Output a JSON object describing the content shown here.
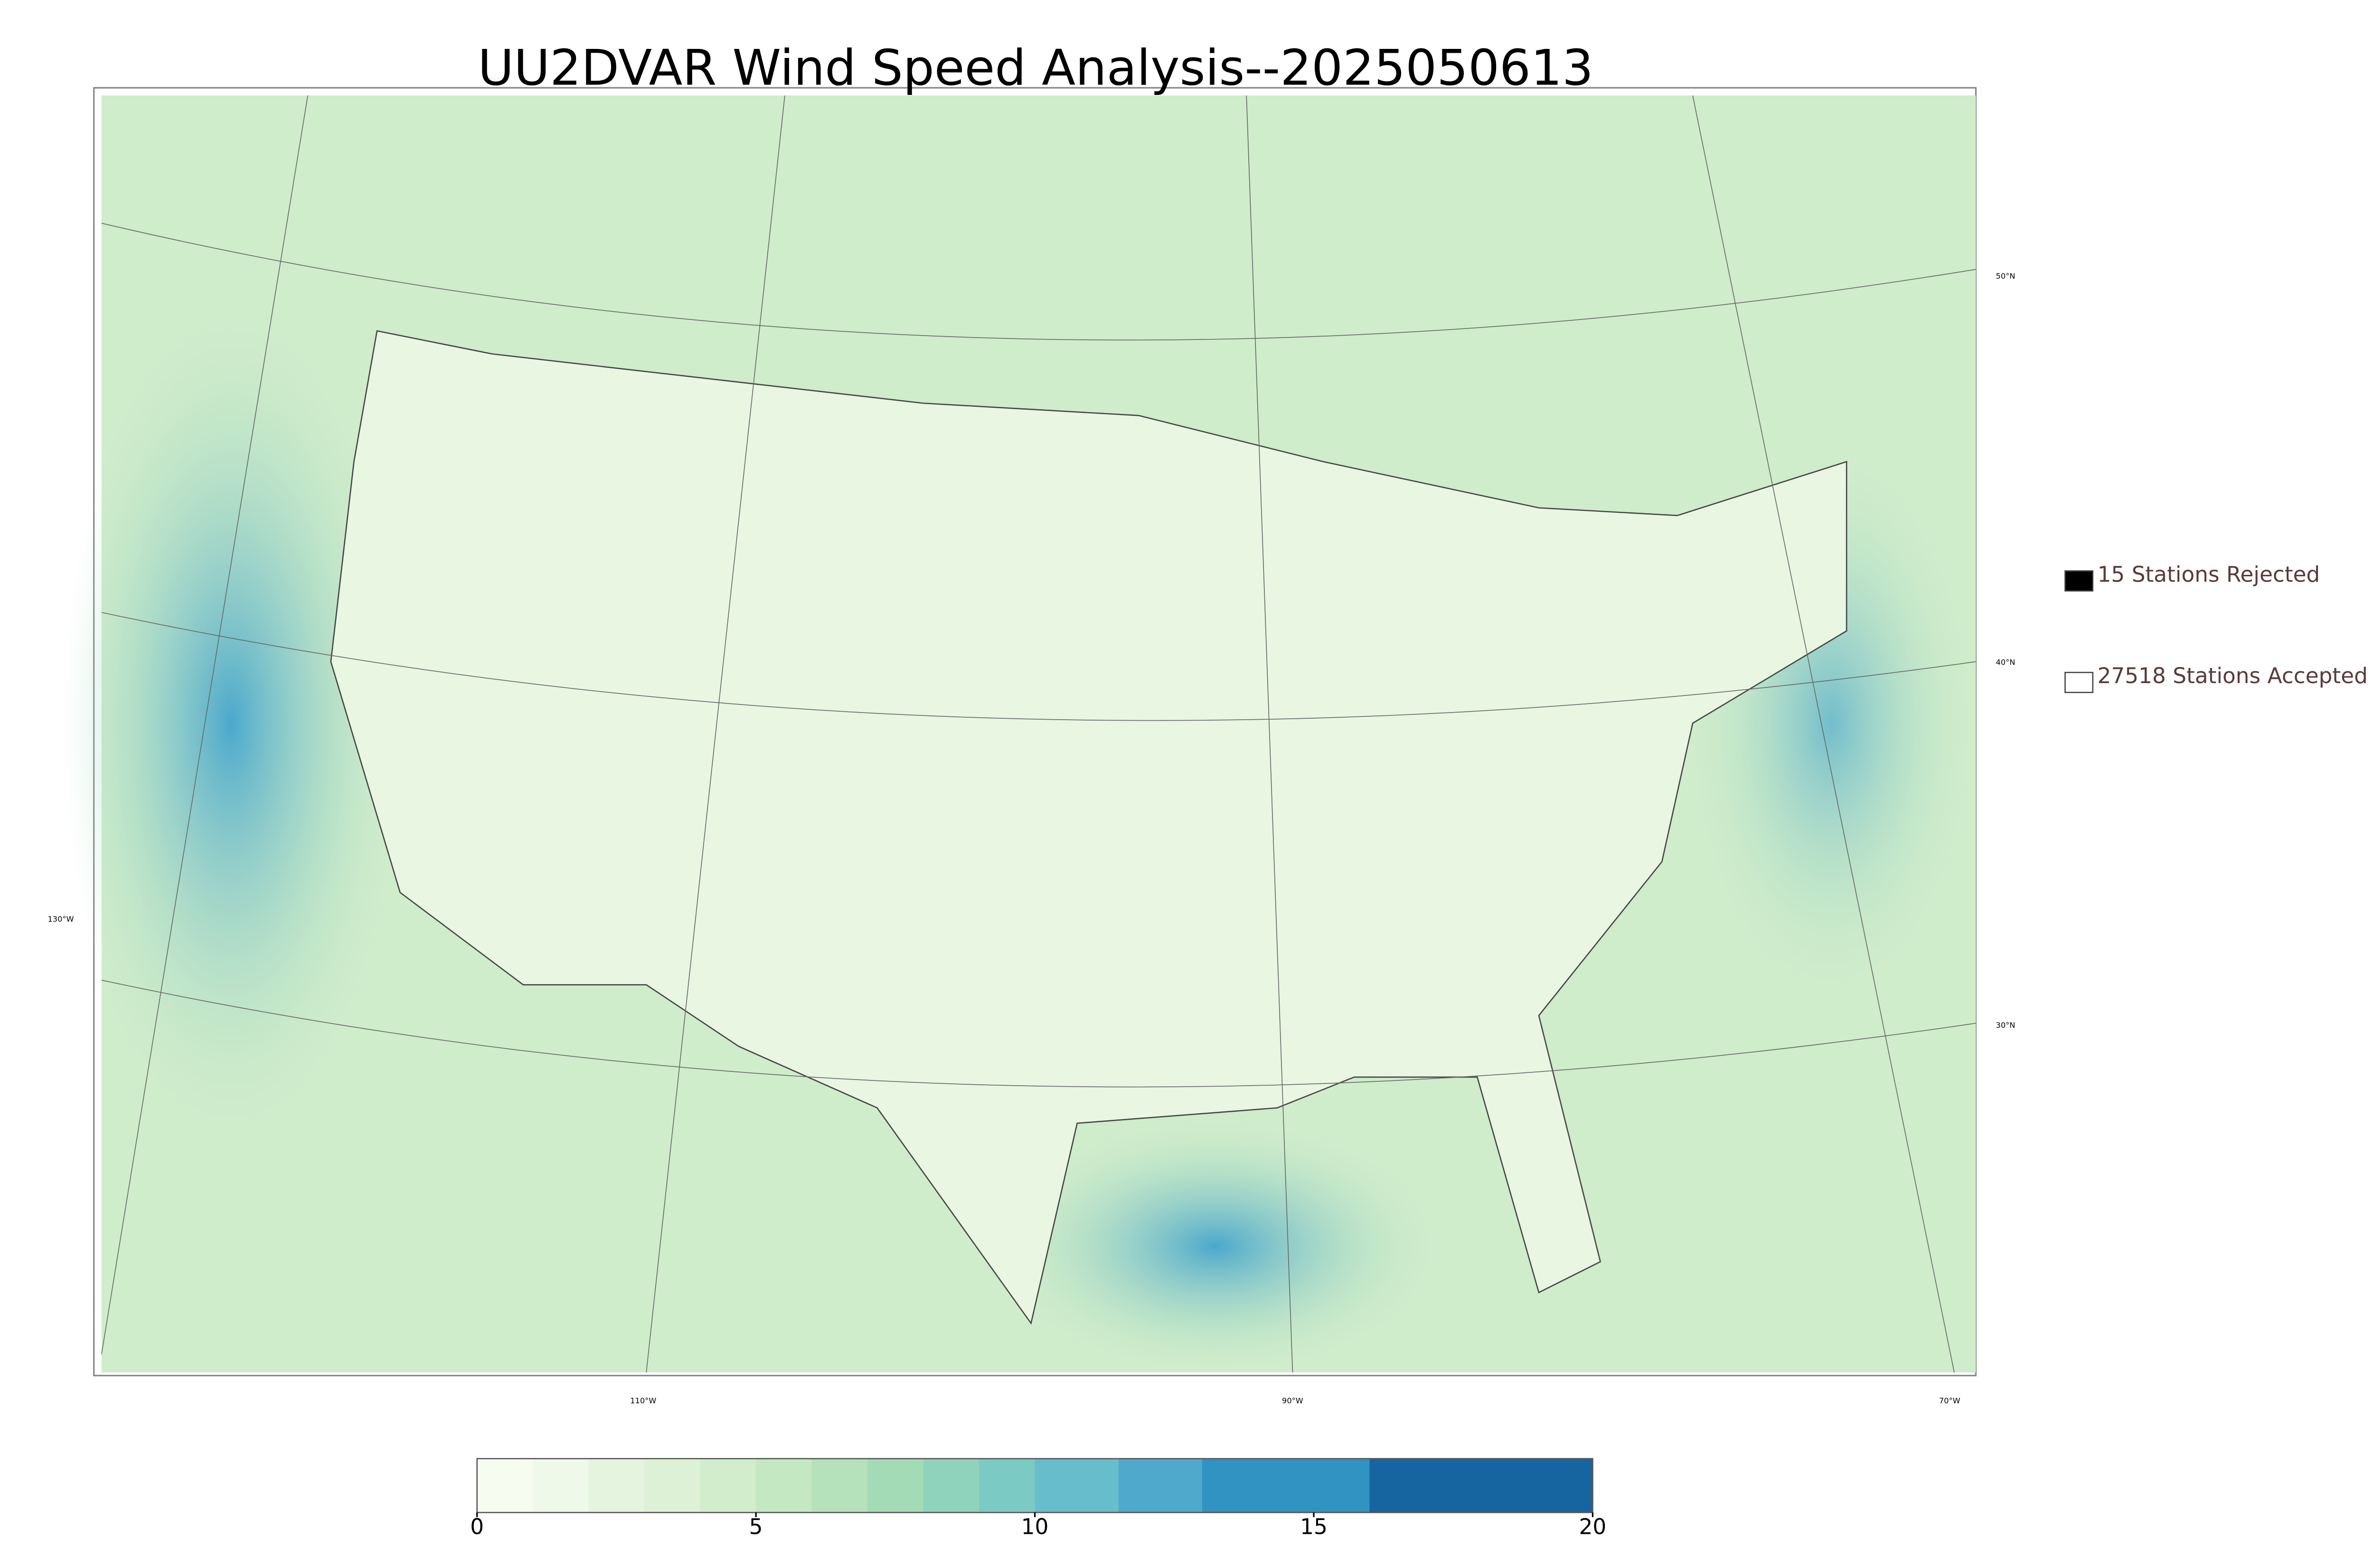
{
  "title": "UU2DVAR Wind Speed Analysis--2025050613",
  "legend": [
    {
      "label": "15 Stations Rejected",
      "color": "#000000"
    },
    {
      "label": "27518 Stations Accepted",
      "color": "#ffffff"
    }
  ],
  "lat_labels": [
    "50°N",
    "40°N",
    "30°N"
  ],
  "lon_labels": [
    "130°W",
    "110°W",
    "90°W",
    "70°W"
  ],
  "colorbar": {
    "range": [
      0,
      20
    ],
    "ticks": [
      0,
      5,
      10,
      15,
      20
    ],
    "levels": [
      0,
      1,
      2,
      3,
      4,
      5,
      6,
      7,
      8,
      9,
      10,
      11.5,
      13,
      16,
      20
    ],
    "colors": [
      "#f7fcf0",
      "#eff9ea",
      "#e4f4df",
      "#dcf1d5",
      "#d1edcb",
      "#c4e8c2",
      "#b5e2bb",
      "#a3dbb7",
      "#8fd3bd",
      "#7bcbc4",
      "#68bdcc",
      "#4fa9cc",
      "#3193c2",
      "#1765a0"
    ]
  }
}
